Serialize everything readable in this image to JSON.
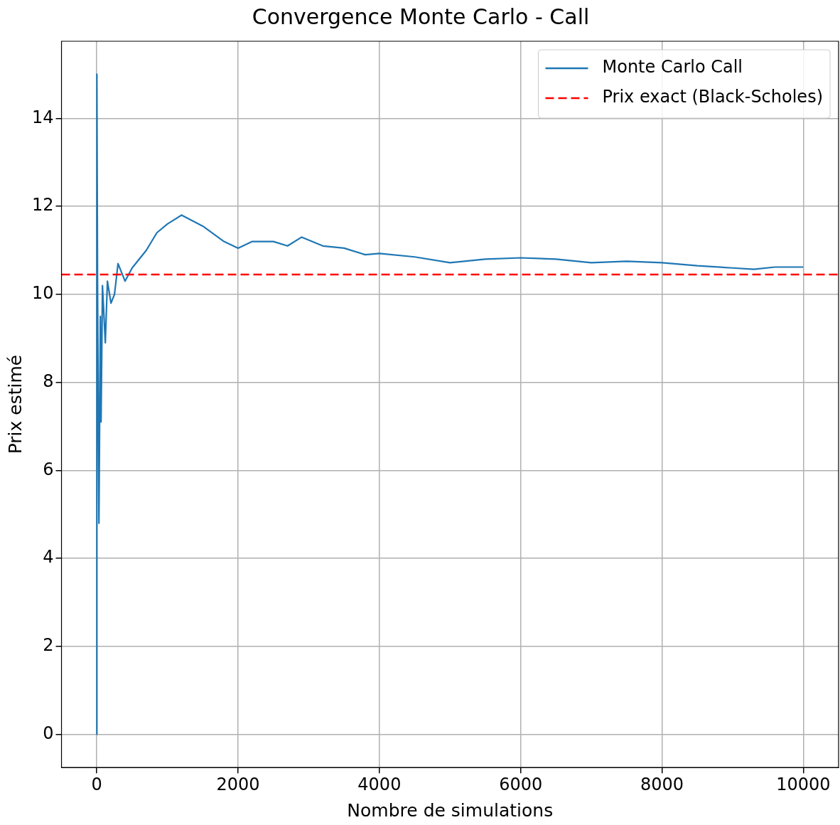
{
  "chart_data": {
    "type": "line",
    "title": "Convergence Monte Carlo - Call",
    "xlabel": "Nombre de simulations",
    "ylabel": "Prix estimé",
    "xlim": [
      -500,
      10500
    ],
    "xticks": [
      0,
      2000,
      4000,
      6000,
      8000,
      10000
    ],
    "ylim": [
      -0.75,
      15.75
    ],
    "yticks": [
      0,
      2,
      4,
      6,
      8,
      10,
      12,
      14
    ],
    "grid": true,
    "legend": "top right",
    "line_style": "solid",
    "marker": "none",
    "series": [
      {
        "name": "Monte Carlo Call",
        "color": "#1f77b4",
        "x": [
          0,
          1,
          10,
          30,
          50,
          60,
          80,
          120,
          150,
          200,
          250,
          300,
          400,
          500,
          700,
          850,
          1000,
          1200,
          1500,
          1800,
          2000,
          2200,
          2500,
          2700,
          2900,
          3200,
          3500,
          3800,
          4000,
          4500,
          5000,
          5500,
          6000,
          6500,
          7000,
          7500,
          8000,
          8500,
          9000,
          9300,
          9600,
          10000
        ],
        "values": [
          0,
          15,
          10.3,
          4.8,
          9.5,
          7.1,
          10.2,
          8.9,
          10.3,
          9.8,
          10,
          10.7,
          10.3,
          10.6,
          11,
          11.4,
          11.6,
          11.8,
          11.55,
          11.2,
          11.05,
          11.2,
          11.2,
          11.1,
          11.3,
          11.1,
          11.05,
          10.9,
          10.93,
          10.85,
          10.72,
          10.8,
          10.83,
          10.8,
          10.72,
          10.75,
          10.72,
          10.65,
          10.6,
          10.57,
          10.62,
          10.62
        ]
      }
    ],
    "ref_lines": [
      {
        "axis": "y",
        "value": 10.45,
        "label": "Prix exact (Black-Scholes)",
        "color": "#ff0000",
        "line_style": "dashed"
      }
    ]
  }
}
